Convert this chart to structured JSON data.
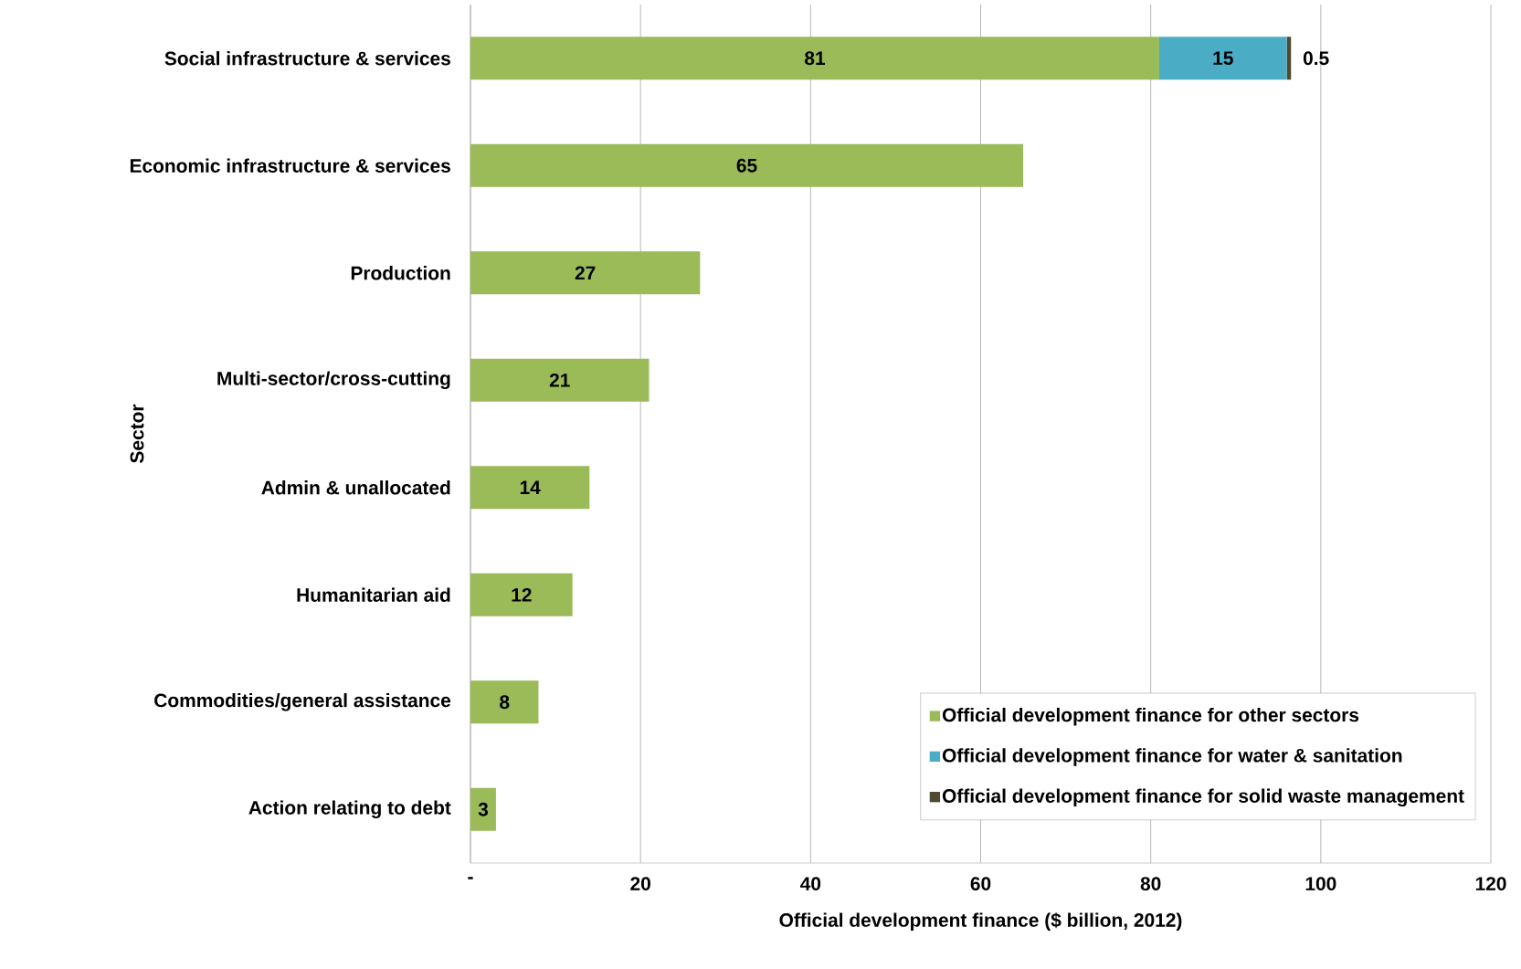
{
  "chart_data": {
    "type": "bar",
    "orientation": "horizontal",
    "stacked": true,
    "xlabel": "Official development finance ($ billion, 2012)",
    "ylabel": "Sector",
    "categories": [
      "Social infrastructure & services",
      "Economic infrastructure & services",
      "Production",
      "Multi-sector/cross-cutting",
      "Admin & unallocated",
      "Humanitarian aid",
      "Commodities/general assistance",
      "Action relating to debt"
    ],
    "series": [
      {
        "name": "Official development finance for other sectors",
        "color": "#9bbb59",
        "values": [
          81,
          65,
          27,
          21,
          14,
          12,
          8,
          3
        ]
      },
      {
        "name": "Official development finance for water & sanitation",
        "color": "#4bacc6",
        "values": [
          15,
          null,
          null,
          null,
          null,
          null,
          null,
          null
        ]
      },
      {
        "name": "Official development finance for solid waste management",
        "color": "#4f4a30",
        "values": [
          0.5,
          null,
          null,
          null,
          null,
          null,
          null,
          null
        ]
      }
    ],
    "xlim": [
      0,
      120
    ],
    "xticks": [
      {
        "value": 0,
        "label": "-"
      },
      20,
      40,
      60,
      80,
      100,
      120
    ],
    "grid": "x",
    "legend": "bottom right",
    "data_labels": true
  }
}
